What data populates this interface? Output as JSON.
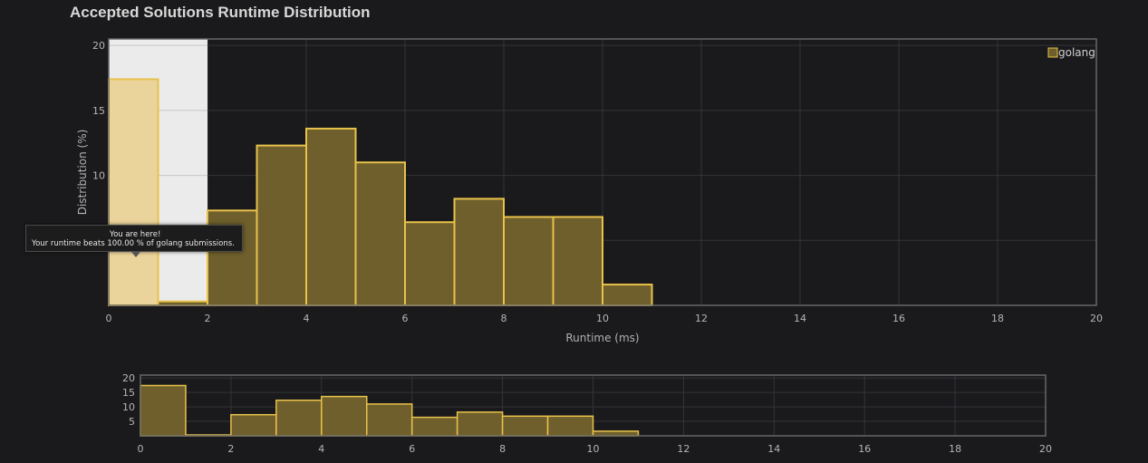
{
  "title": "Accepted Solutions Runtime Distribution",
  "colors": {
    "bar_fill": "#6e5f2c",
    "bar_stroke": "#e8c24a",
    "highlight_fill": "#ebd49b",
    "highlight_band": "#ebebeb",
    "background": "#1a1a1c",
    "frame": "#666666"
  },
  "tooltip": {
    "line1": "You are here!",
    "line2": "Your runtime beats 100.00 % of golang submissions."
  },
  "chart_data": [
    {
      "type": "bar",
      "role": "main",
      "xlabel": "Runtime (ms)",
      "ylabel": "Distribution (%)",
      "xlim": [
        0,
        20
      ],
      "ylim": [
        0,
        20.5
      ],
      "x_ticks": [
        0,
        2,
        4,
        6,
        8,
        10,
        12,
        14,
        16,
        18,
        20
      ],
      "y_ticks": [
        10,
        15,
        20
      ],
      "bin_width": 1,
      "bins": [
        0,
        1,
        2,
        3,
        4,
        5,
        6,
        7,
        8,
        9,
        10
      ],
      "series": [
        {
          "name": "golang",
          "values": [
            17.4,
            0.3,
            7.3,
            12.3,
            13.6,
            11.0,
            6.4,
            8.2,
            6.8,
            6.8,
            1.6
          ]
        }
      ],
      "highlight_range": [
        0,
        2
      ],
      "highlight_bin": 0,
      "legend": "top-right",
      "grid": true
    },
    {
      "type": "bar",
      "role": "navigator",
      "xlim": [
        0,
        20
      ],
      "ylim": [
        0,
        21
      ],
      "x_ticks": [
        0,
        2,
        4,
        6,
        8,
        10,
        12,
        14,
        16,
        18,
        20
      ],
      "y_ticks": [
        5,
        10,
        15,
        20
      ],
      "bin_width": 1,
      "bins": [
        0,
        1,
        2,
        3,
        4,
        5,
        6,
        7,
        8,
        9,
        10
      ],
      "series": [
        {
          "name": "golang",
          "values": [
            17.4,
            0.3,
            7.3,
            12.3,
            13.6,
            11.0,
            6.4,
            8.2,
            6.8,
            6.8,
            1.6
          ]
        }
      ],
      "grid": true
    }
  ]
}
